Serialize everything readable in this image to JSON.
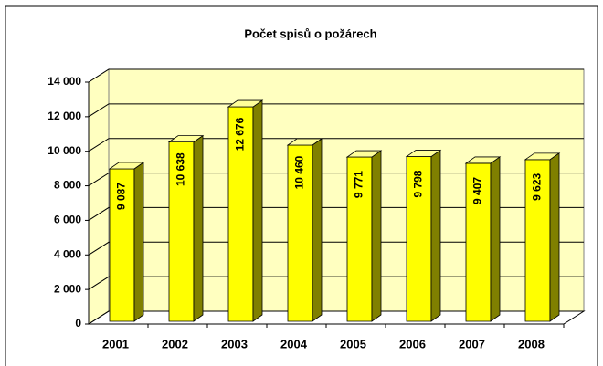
{
  "chart_data": {
    "type": "bar",
    "title": "Počet spisů o požárech",
    "categories": [
      "2001",
      "2002",
      "2003",
      "2004",
      "2005",
      "2006",
      "2007",
      "2008"
    ],
    "values": [
      9087,
      10638,
      12676,
      10460,
      9771,
      9798,
      9407,
      9623
    ],
    "value_labels": [
      "9 087",
      "10 638",
      "12 676",
      "10 460",
      "9 771",
      "9 798",
      "9 407",
      "9 623"
    ],
    "color": "#ffff00",
    "ylim": [
      0,
      14000
    ],
    "yticks": [
      0,
      {
        "value": 2000,
        "label": "2 000"
      },
      {
        "value": 4000,
        "label": "4 000"
      },
      {
        "value": 6000,
        "label": "6 000"
      },
      {
        "value": 8000,
        "label": "8 000"
      },
      {
        "value": 10000,
        "label": "10 000"
      },
      {
        "value": 12000,
        "label": "12 000"
      },
      {
        "value": 14000,
        "label": "14 000"
      }
    ],
    "grid": true
  }
}
